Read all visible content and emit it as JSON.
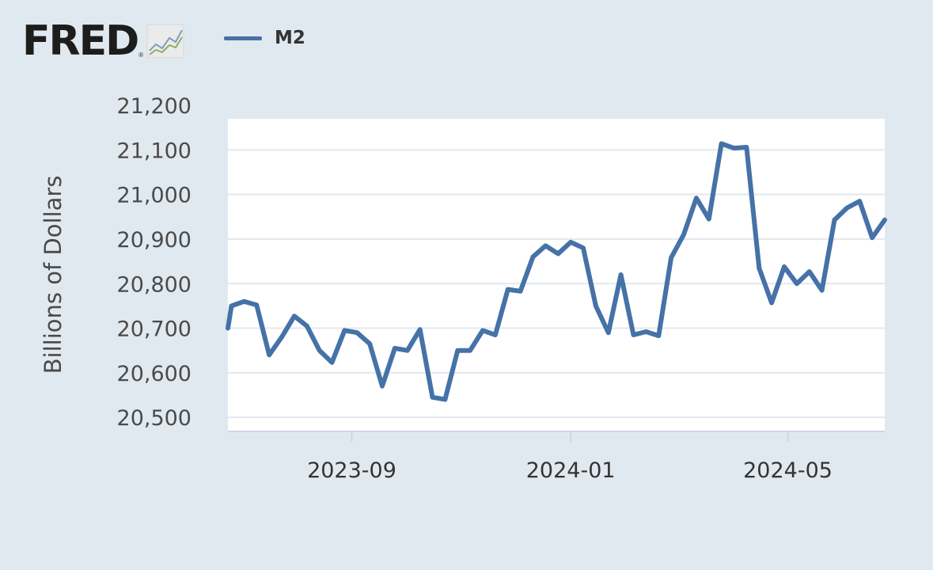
{
  "brand": {
    "logo_text": "FRED",
    "logo_mark": "®",
    "logo_icon": "line-chart-icon"
  },
  "legend": {
    "label": "M2",
    "color": "#4572a7"
  },
  "colors": {
    "background": "#e1e9f0",
    "plot_background": "#ffffff",
    "gridline": "#e4e8ee",
    "axis": "#ccd6eb",
    "series": "#4572a7"
  },
  "chart_data": {
    "type": "line",
    "title": "",
    "xlabel": "",
    "ylabel": "Billions of Dollars",
    "ylim": [
      20470,
      21170
    ],
    "xlim": [
      "2023-06-24",
      "2024-06-24"
    ],
    "y_ticks": [
      20500,
      20600,
      20700,
      20800,
      20900,
      21000,
      21100,
      21200
    ],
    "y_tick_labels": [
      "20,500",
      "20,600",
      "20,700",
      "20,800",
      "20,900",
      "21,000",
      "21,100",
      "21,200"
    ],
    "x_ticks": [
      "2023-09-01",
      "2024-01-01",
      "2024-05-01"
    ],
    "x_tick_labels": [
      "2023-09",
      "2024-01",
      "2024-05"
    ],
    "grid": true,
    "legend_position": "top-left",
    "series": [
      {
        "name": "M2",
        "color": "#4572a7",
        "x": [
          "2023-06-24",
          "2023-06-26",
          "2023-07-03",
          "2023-07-10",
          "2023-07-17",
          "2023-07-24",
          "2023-07-31",
          "2023-08-07",
          "2023-08-14",
          "2023-08-21",
          "2023-08-28",
          "2023-09-04",
          "2023-09-11",
          "2023-09-18",
          "2023-09-25",
          "2023-10-02",
          "2023-10-09",
          "2023-10-16",
          "2023-10-23",
          "2023-10-30",
          "2023-11-06",
          "2023-11-13",
          "2023-11-20",
          "2023-11-27",
          "2023-12-04",
          "2023-12-11",
          "2023-12-18",
          "2023-12-25",
          "2024-01-01",
          "2024-01-08",
          "2024-01-15",
          "2024-01-22",
          "2024-01-29",
          "2024-02-05",
          "2024-02-12",
          "2024-02-19",
          "2024-02-26",
          "2024-03-04",
          "2024-03-11",
          "2024-03-18",
          "2024-03-25",
          "2024-04-01",
          "2024-04-08",
          "2024-04-15",
          "2024-04-22",
          "2024-04-29",
          "2024-05-06",
          "2024-05-13",
          "2024-05-20",
          "2024-05-27",
          "2024-06-03",
          "2024-06-10",
          "2024-06-17",
          "2024-06-24"
        ],
        "values": [
          20700,
          20750,
          20760,
          20752,
          20640,
          20680,
          20727,
          20705,
          20650,
          20623,
          20695,
          20690,
          20665,
          20570,
          20655,
          20650,
          20697,
          20545,
          20540,
          20650,
          20650,
          20695,
          20685,
          20787,
          20783,
          20860,
          20885,
          20867,
          20893,
          20880,
          20750,
          20690,
          20820,
          20685,
          20692,
          20683,
          20858,
          20910,
          20992,
          20945,
          21114,
          21104,
          21106,
          20835,
          20757,
          20838,
          20800,
          20827,
          20785,
          20943,
          20970,
          20985,
          20903,
          20943
        ]
      }
    ]
  }
}
